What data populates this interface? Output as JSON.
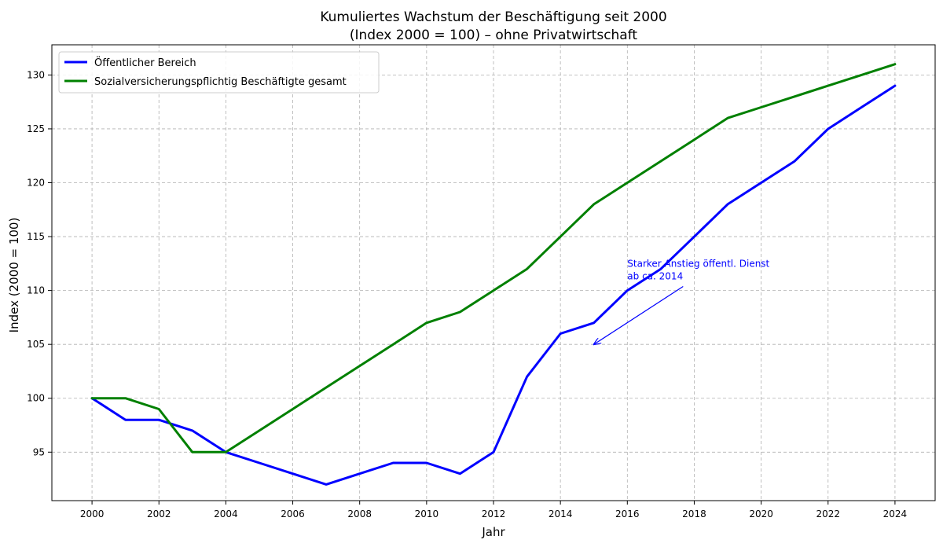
{
  "chart_data": {
    "type": "line",
    "title_line1": "Kumuliertes Wachstum der Beschäftigung seit 2000",
    "title_line2": "(Index 2000 = 100) – ohne Privatwirtschaft",
    "xlabel": "Jahr",
    "ylabel": "Index (2000 = 100)",
    "xlim": [
      1998.8,
      2025.2
    ],
    "ylim": [
      90.5,
      132.8
    ],
    "x_ticks": [
      2000,
      2002,
      2004,
      2006,
      2008,
      2010,
      2012,
      2014,
      2016,
      2018,
      2020,
      2022,
      2024
    ],
    "y_ticks": [
      95,
      100,
      105,
      110,
      115,
      120,
      125,
      130
    ],
    "grid": true,
    "legend_position": "top-left",
    "x": [
      2000,
      2001,
      2002,
      2003,
      2004,
      2005,
      2006,
      2007,
      2008,
      2009,
      2010,
      2011,
      2012,
      2013,
      2014,
      2015,
      2016,
      2017,
      2018,
      2019,
      2020,
      2021,
      2022,
      2023,
      2024
    ],
    "series": [
      {
        "name": "Öffentlicher Bereich",
        "color": "#0000ff",
        "values": [
          100,
          98,
          98,
          97,
          95,
          94,
          93,
          92,
          93,
          94,
          94,
          93,
          95,
          102,
          106,
          107,
          110,
          112,
          115,
          118,
          120,
          122,
          125,
          127,
          129
        ]
      },
      {
        "name": "Sozialversicherungspflichtig Beschäftigte gesamt",
        "color": "#008000",
        "values": [
          100,
          100,
          99,
          95,
          95,
          97,
          99,
          101,
          103,
          105,
          107,
          108,
          110,
          112,
          115,
          118,
          120,
          122,
          124,
          126,
          127,
          128,
          129,
          130,
          131
        ]
      }
    ],
    "annotation": {
      "text_line1": "Starker Anstieg öffentl. Dienst",
      "text_line2": "ab ca. 2014",
      "color": "#0000ff",
      "arrow_target": {
        "x": 2015,
        "y": 105
      },
      "text_anchor": {
        "x": 2016,
        "y": 113
      }
    }
  }
}
